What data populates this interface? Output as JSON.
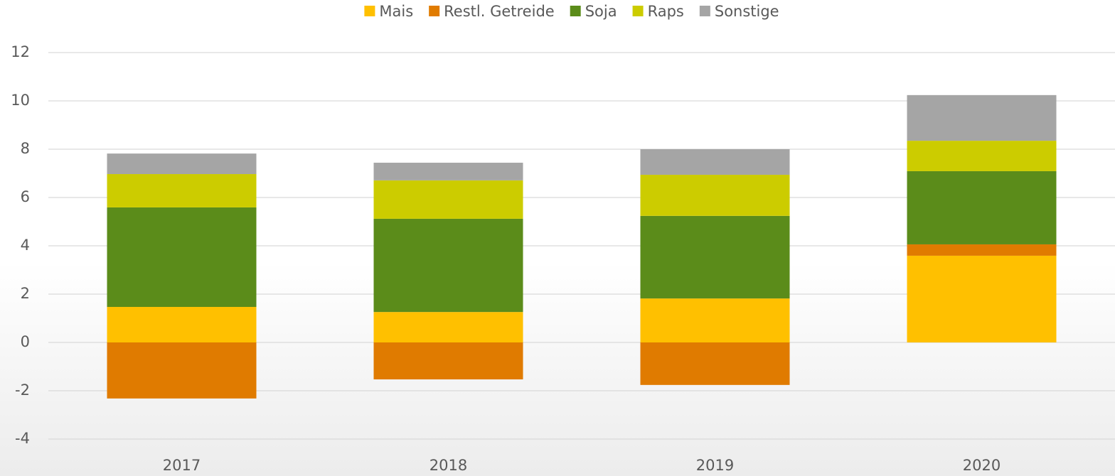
{
  "chart_data": {
    "type": "stacked_bar",
    "categories": [
      "2017",
      "2018",
      "2019",
      "2020"
    ],
    "series": [
      {
        "name": "Mais",
        "color": "#FFC000",
        "values": [
          1.47,
          1.26,
          1.82,
          3.59
        ]
      },
      {
        "name": "Restl. Getreide",
        "color": "#E07B00",
        "values": [
          -2.32,
          -1.53,
          -1.76,
          0.47
        ]
      },
      {
        "name": "Soja",
        "color": "#5B8C1A",
        "values": [
          4.12,
          3.86,
          3.42,
          3.03
        ]
      },
      {
        "name": "Raps",
        "color": "#CCCC00",
        "values": [
          1.38,
          1.59,
          1.7,
          1.26
        ]
      },
      {
        "name": "Sonstige",
        "color": "#A5A5A5",
        "values": [
          0.85,
          0.73,
          1.06,
          1.89
        ]
      }
    ],
    "ylim": [
      -4,
      12
    ],
    "yticks": [
      -4,
      -2,
      0,
      2,
      4,
      6,
      8,
      10,
      12
    ],
    "grid": true,
    "legend": "top"
  }
}
